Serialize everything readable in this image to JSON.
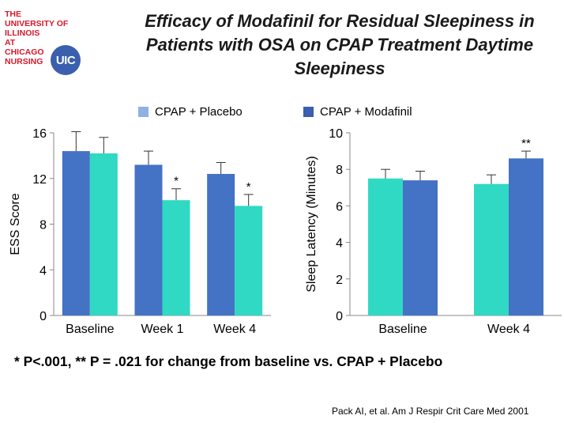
{
  "logo": {
    "lines": [
      "THE",
      "UNIVERSITY OF",
      "ILLINOIS",
      "AT",
      "CHICAGO",
      "NURSING"
    ],
    "badge": "UIC"
  },
  "title": {
    "line1": "Efficacy of Modafinil for Residual Sleepiness in",
    "line2": "Patients with OSA on CPAP Treatment Daytime",
    "line3": "Sleepiness"
  },
  "legend": {
    "placebo_label": "CPAP + Placebo",
    "placebo_color": "#8eb1e2",
    "modafinil_label": "CPAP + Modafinil",
    "modafinil_color": "#3a5eb0"
  },
  "colors": {
    "blue": "#4472c4",
    "teal": "#2fd9c4"
  },
  "footnote": "* P<.001, ** P = .021 for change from baseline vs. CPAP + Placebo",
  "citation": "Pack AI, et al. Am J Respir Crit Care Med 2001",
  "chart_data": [
    {
      "type": "bar",
      "title": "",
      "xlabel": "",
      "ylabel": "ESS Score",
      "ylim": [
        0,
        16
      ],
      "yticks": [
        "0",
        "4",
        "8",
        "12",
        "16"
      ],
      "categories": [
        "Baseline",
        "Week 1",
        "Week 4"
      ],
      "series": [
        {
          "color": "#4472c4",
          "values": [
            14.4,
            13.2,
            12.4
          ],
          "errors": [
            1.7,
            1.2,
            1.0
          ],
          "annotations": [
            "",
            "",
            ""
          ]
        },
        {
          "color": "#2fd9c4",
          "values": [
            14.2,
            10.1,
            9.6
          ],
          "errors": [
            1.4,
            1.0,
            1.0
          ],
          "annotations": [
            "",
            "*",
            "*"
          ]
        }
      ]
    },
    {
      "type": "bar",
      "title": "",
      "xlabel": "",
      "ylabel": "Sleep Latency (Minutes)",
      "ylim": [
        0,
        10
      ],
      "yticks": [
        "0",
        "2",
        "4",
        "6",
        "8",
        "10"
      ],
      "categories": [
        "Baseline",
        "Week 4"
      ],
      "series": [
        {
          "color": "#2fd9c4",
          "values": [
            7.5,
            7.2
          ],
          "errors": [
            0.5,
            0.5
          ],
          "annotations": [
            "",
            ""
          ]
        },
        {
          "color": "#4472c4",
          "values": [
            7.4,
            8.6
          ],
          "errors": [
            0.5,
            0.4
          ],
          "annotations": [
            "",
            "**"
          ]
        }
      ]
    }
  ]
}
